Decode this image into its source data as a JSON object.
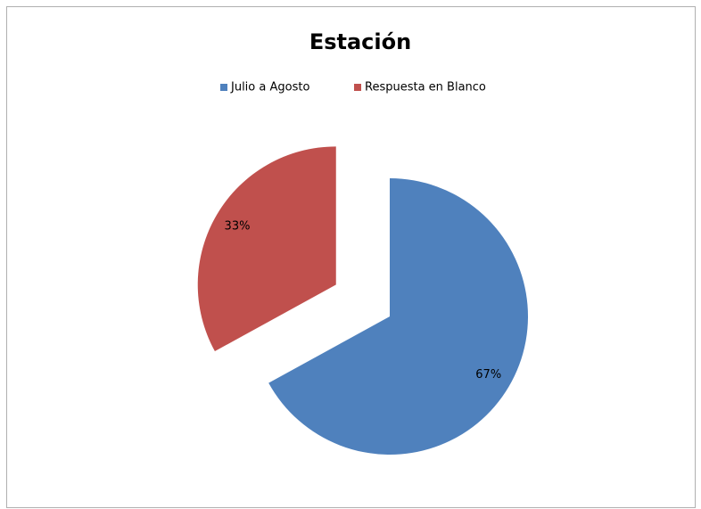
{
  "chart_data": {
    "type": "pie",
    "title": "Estación",
    "categories": [
      "Julio a Agosto",
      "Respuesta en Blanco"
    ],
    "values": [
      67,
      33
    ],
    "value_labels": [
      "67%",
      "33%"
    ],
    "colors": [
      "#4f81bd",
      "#c0504d"
    ],
    "legend": "top"
  }
}
